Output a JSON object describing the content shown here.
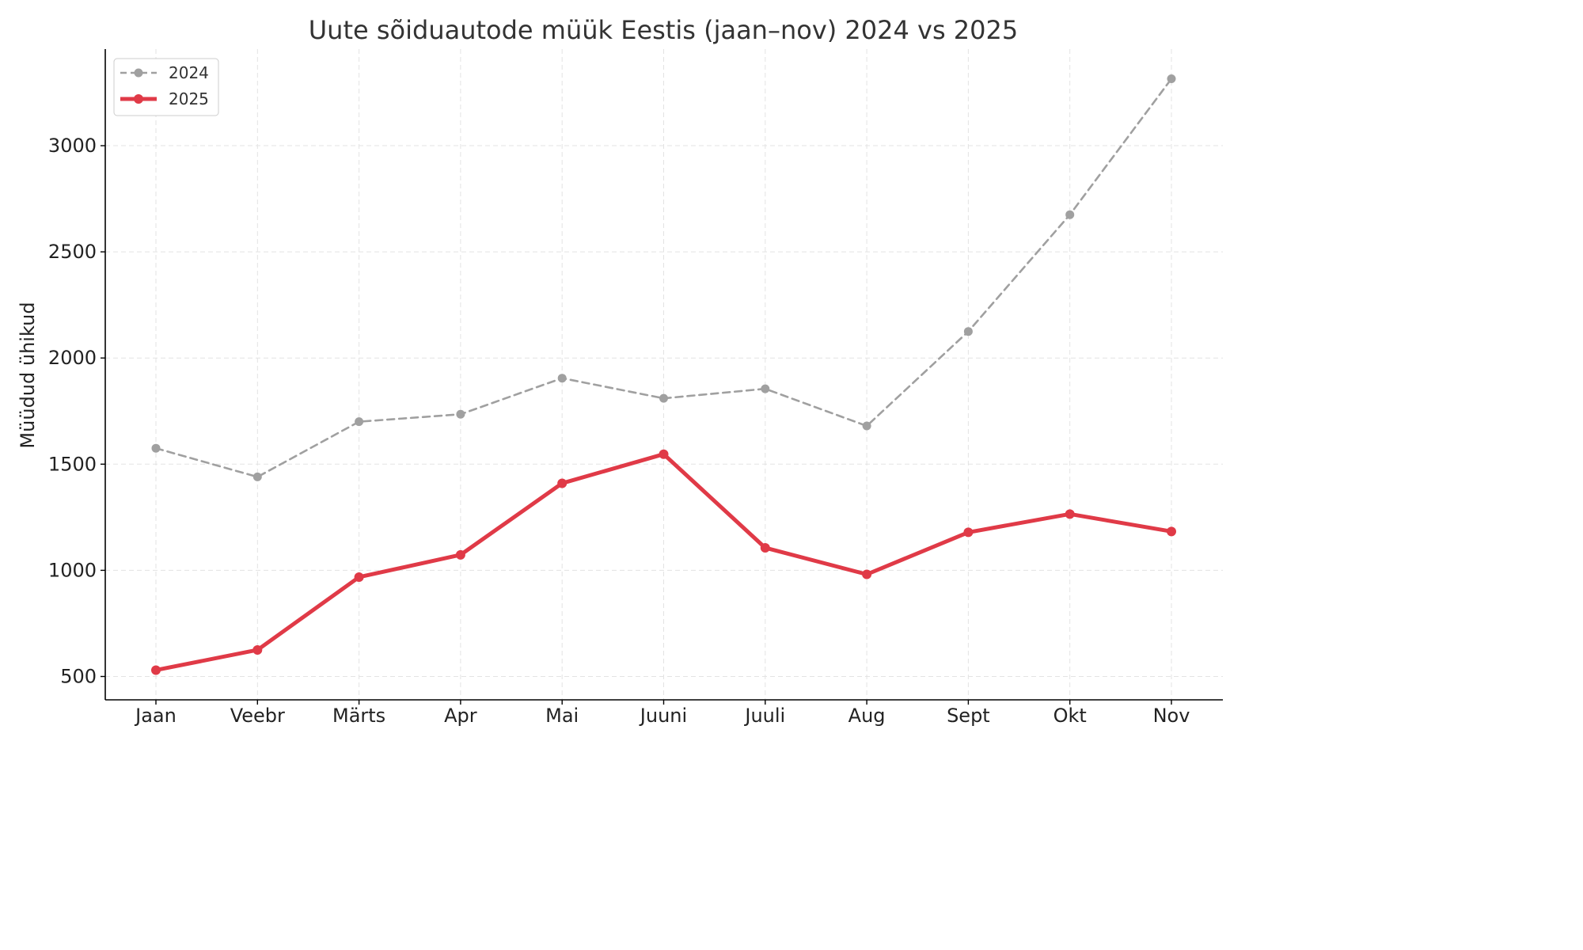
{
  "chart_data": {
    "type": "line",
    "title": "Uute sõiduautode müük Eestis (jaan–nov) 2024 vs 2025",
    "xlabel": "",
    "ylabel": "Müüdud ühikud",
    "categories": [
      "Jaan",
      "Veebr",
      "Märts",
      "Apr",
      "Mai",
      "Juuni",
      "Juuli",
      "Aug",
      "Sept",
      "Okt",
      "Nov"
    ],
    "series": [
      {
        "name": "2024",
        "values": [
          1575,
          1440,
          1700,
          1735,
          1905,
          1810,
          1855,
          1680,
          2125,
          2675,
          3315
        ],
        "color": "#a0a0a0",
        "style": "dashed"
      },
      {
        "name": "2025",
        "values": [
          530,
          625,
          968,
          1073,
          1410,
          1547,
          1106,
          981,
          1179,
          1265,
          1183
        ],
        "color": "#e03a47",
        "style": "solid"
      }
    ],
    "yticks": [
      500,
      1000,
      1500,
      2000,
      2500,
      3000
    ],
    "ylim": [
      390,
      3455
    ],
    "grid": true,
    "legend_position": "top-left"
  }
}
